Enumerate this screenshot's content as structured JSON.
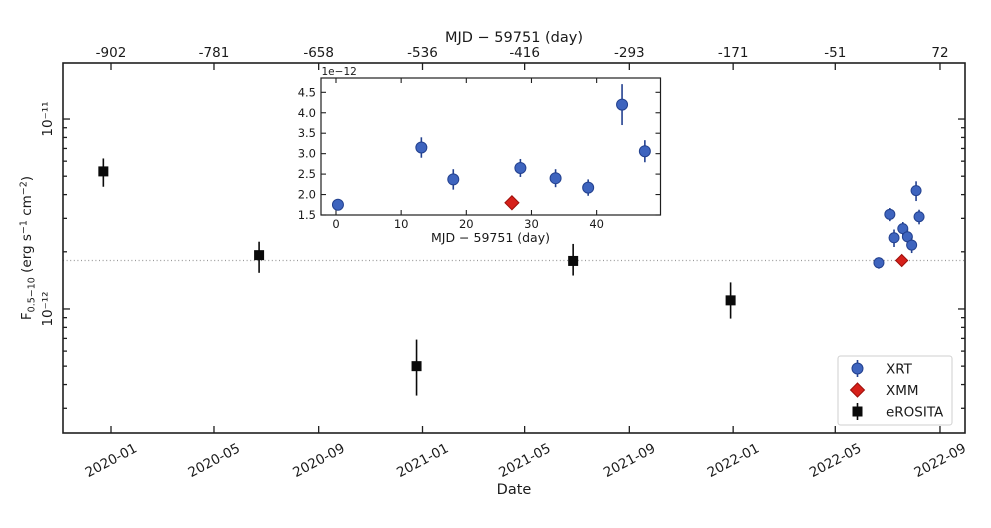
{
  "colors": {
    "background": "#ffffff",
    "xrt_fill": "#3e64be",
    "xrt_edge": "#23418f",
    "xmm_fill": "#d6201a",
    "xmm_edge": "#9d100b",
    "erosita": "#0a0a0a",
    "ref_line": "#999999",
    "text": "#1a1a1a",
    "legend_border": "#cfcfcf"
  },
  "chart_data": [
    {
      "id": "main",
      "type": "scatter",
      "x_unit": "days relative to MJD 59751",
      "flux_unit_scale": "1e-12 erg s^-1 cm^-2",
      "xlim": [
        -958.4,
        101.4
      ],
      "ylim_log10": [
        -12.653,
        -10.705
      ],
      "grid": false,
      "top_axis": {
        "label": "MJD − 59751 (day)",
        "tick_values": [
          -902,
          -781,
          -658,
          -536,
          -416,
          -293,
          -171,
          -51,
          72
        ],
        "tick_labels": [
          "-902",
          "-781",
          "-658",
          "-536",
          "-416",
          "-293",
          "-171",
          "-51",
          "72"
        ]
      },
      "bottom_axis": {
        "label": "Date",
        "tick_values": [
          -902,
          -781,
          -658,
          -536,
          -416,
          -293,
          -171,
          -51,
          72
        ],
        "tick_labels": [
          "2020-01",
          "2020-05",
          "2020-09",
          "2021-01",
          "2021-05",
          "2021-09",
          "2022-01",
          "2022-05",
          "2022-09"
        ]
      },
      "y_axis": {
        "label": "F0.5−10 (erg s−1 cm−2)",
        "label_rich": [
          {
            "t": "F"
          },
          {
            "t": "0.5−10",
            "style": "sub"
          },
          {
            "t": " (erg s"
          },
          {
            "t": "−1",
            "style": "sup"
          },
          {
            "t": " cm"
          },
          {
            "t": "−2",
            "style": "sup"
          },
          {
            "t": ")"
          }
        ],
        "major_ticks": [
          {
            "log": -11,
            "label": "10⁻¹¹"
          },
          {
            "log": -12,
            "label": "10⁻¹²"
          }
        ]
      },
      "reference_line": {
        "y_1e12": 1.8,
        "style": "dotted"
      },
      "series": [
        {
          "name": "XRT",
          "marker": "circle",
          "points": [
            {
              "x": 0.3,
              "y": 1.75,
              "err": 0.12
            },
            {
              "x": 13.1,
              "y": 3.15,
              "err": 0.25
            },
            {
              "x": 18.0,
              "y": 2.37,
              "err": 0.25
            },
            {
              "x": 28.3,
              "y": 2.65,
              "err": 0.22
            },
            {
              "x": 33.7,
              "y": 2.4,
              "err": 0.22
            },
            {
              "x": 38.7,
              "y": 2.17,
              "err": 0.2
            },
            {
              "x": 43.9,
              "y": 4.2,
              "err": 0.5
            },
            {
              "x": 47.4,
              "y": 3.06,
              "err": 0.27
            }
          ]
        },
        {
          "name": "XMM",
          "marker": "diamond",
          "points": [
            {
              "x": 27.0,
              "y": 1.8,
              "err": 0.05
            }
          ]
        },
        {
          "name": "eROSITA",
          "marker": "square",
          "points": [
            {
              "x": -911,
              "y": 5.3,
              "lo": 4.4,
              "hi": 6.2
            },
            {
              "x": -728,
              "y": 1.92,
              "lo": 1.55,
              "hi": 2.26
            },
            {
              "x": -543,
              "y": 0.5,
              "lo": 0.35,
              "hi": 0.69
            },
            {
              "x": -359,
              "y": 1.79,
              "lo": 1.5,
              "hi": 2.2
            },
            {
              "x": -174,
              "y": 1.11,
              "lo": 0.89,
              "hi": 1.38
            }
          ]
        }
      ],
      "legend": {
        "position": "lower right",
        "entries": [
          {
            "label": "XRT",
            "marker": "circle",
            "errorbar": true
          },
          {
            "label": "XMM",
            "marker": "diamond",
            "errorbar": false
          },
          {
            "label": "eROSITA",
            "marker": "square",
            "errorbar": true
          }
        ]
      }
    },
    {
      "id": "inset",
      "type": "scatter",
      "offset_label": "1e−12",
      "xlabel": "MJD − 59751 (day)",
      "xlim": [
        -2.3,
        49.8
      ],
      "ylim_1e12": [
        1.5,
        4.85
      ],
      "grid": false,
      "xticks": {
        "values": [
          0,
          10,
          20,
          30,
          40
        ],
        "labels": [
          "0",
          "10",
          "20",
          "30",
          "40"
        ]
      },
      "yticks": {
        "values": [
          1.5,
          2.0,
          2.5,
          3.0,
          3.5,
          4.0,
          4.5
        ],
        "labels": [
          "1.5",
          "2.0",
          "2.5",
          "3.0",
          "3.5",
          "4.0",
          "4.5"
        ]
      },
      "series_refs": [
        "XRT",
        "XMM"
      ]
    }
  ]
}
